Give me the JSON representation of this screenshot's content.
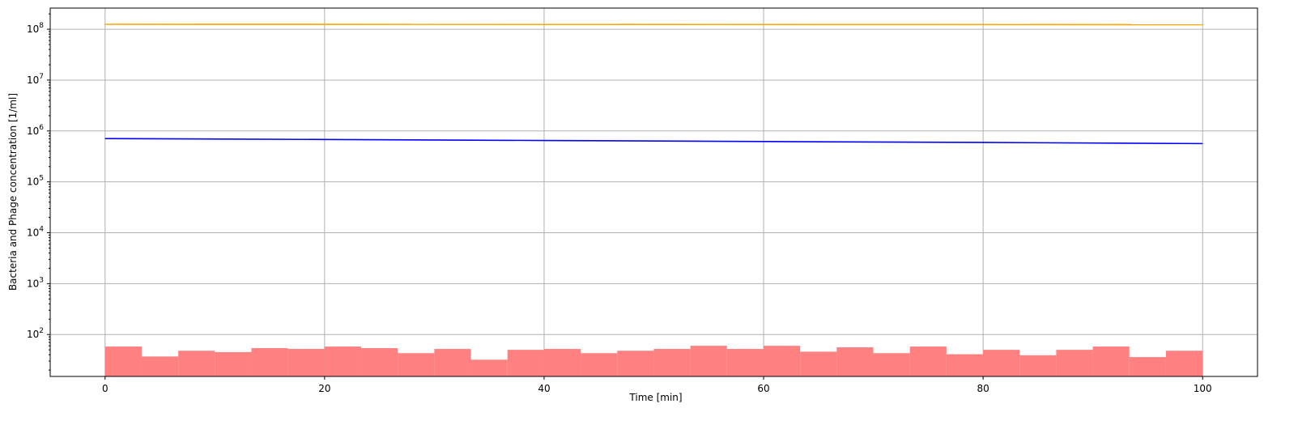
{
  "chart_data": {
    "type": "line",
    "title": "",
    "xlabel": "Time [min]",
    "ylabel": "Bacteria and Phage concentration [1/ml]",
    "xlim": [
      -5,
      105
    ],
    "ylim": [
      15,
      260000000
    ],
    "yscale": "log",
    "grid": true,
    "x_ticks": [
      0,
      20,
      40,
      60,
      80,
      100
    ],
    "x_tick_labels": [
      "0",
      "20",
      "40",
      "60",
      "80",
      "100"
    ],
    "y_ticks": [
      100,
      1000,
      10000,
      100000,
      1000000,
      10000000,
      100000000
    ],
    "y_tick_labels": [
      {
        "base": "10",
        "exp": "2"
      },
      {
        "base": "10",
        "exp": "3"
      },
      {
        "base": "10",
        "exp": "4"
      },
      {
        "base": "10",
        "exp": "5"
      },
      {
        "base": "10",
        "exp": "6"
      },
      {
        "base": "10",
        "exp": "7"
      },
      {
        "base": "10",
        "exp": "8"
      }
    ],
    "series": [
      {
        "type": "line",
        "color": "#ffa500",
        "x": [
          0,
          100
        ],
        "y": [
          125000000,
          123000000
        ]
      },
      {
        "type": "line",
        "color": "#0000ff",
        "x": [
          0,
          20,
          40,
          60,
          80,
          100
        ],
        "y": [
          710000,
          680000,
          650000,
          620000,
          595000,
          565000
        ]
      },
      {
        "type": "histogram",
        "color": "#ff8080",
        "bin_width": 3.333,
        "x_start": 0,
        "values": [
          58,
          37,
          48,
          45,
          54,
          52,
          58,
          54,
          43,
          52,
          32,
          50,
          52,
          43,
          48,
          52,
          60,
          52,
          60,
          46,
          56,
          43,
          58,
          41,
          50,
          39,
          50,
          58,
          36,
          48
        ]
      }
    ]
  }
}
